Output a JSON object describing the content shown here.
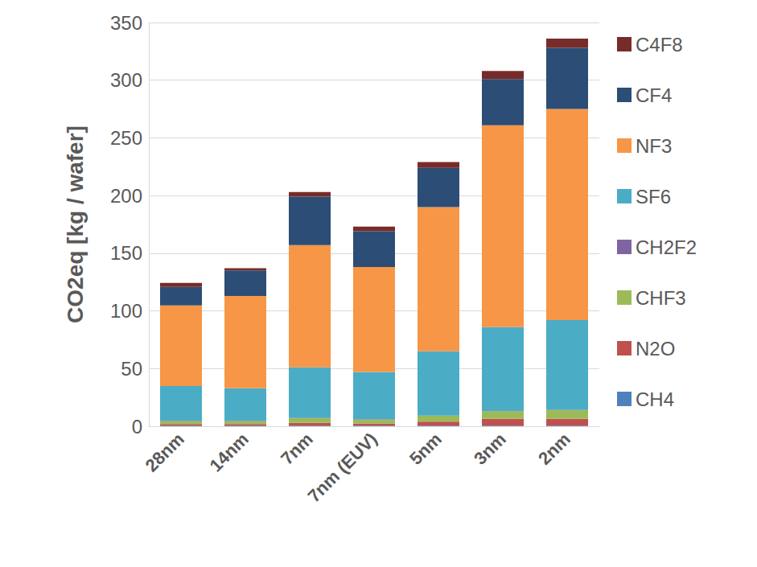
{
  "chart_data": {
    "type": "bar",
    "y_label": "CO2eq [kg / wafer]",
    "categories": [
      "28nm",
      "14nm",
      "7nm",
      "7nm (EUV)",
      "5nm",
      "3nm",
      "2nm"
    ],
    "stacked": true,
    "grid": true,
    "legend": "right",
    "ylim": [
      0,
      350
    ],
    "yticks": [
      0,
      50,
      100,
      150,
      200,
      250,
      300,
      350
    ],
    "series": [
      {
        "name": "CH4",
        "color": "#4f81bd",
        "values": [
          0.5,
          0.5,
          0.5,
          0.5,
          0.5,
          0.5,
          0.5
        ]
      },
      {
        "name": "N2O",
        "color": "#c0504d",
        "values": [
          1.5,
          1.5,
          2.5,
          2,
          3.5,
          6,
          6
        ]
      },
      {
        "name": "CHF3",
        "color": "#9bbb59",
        "values": [
          2.5,
          2.5,
          4,
          3.5,
          5,
          6.5,
          7.5
        ]
      },
      {
        "name": "CH2F2",
        "color": "#8064a2",
        "values": [
          0.3,
          0.3,
          0.3,
          0.3,
          0.3,
          0.3,
          0.3
        ]
      },
      {
        "name": "SF6",
        "color": "#4bacc6",
        "values": [
          30,
          28.2,
          43.7,
          40.7,
          55.7,
          72.7,
          77.7
        ]
      },
      {
        "name": "NF3",
        "color": "#f79646",
        "values": [
          70,
          80,
          106,
          91,
          125,
          175,
          183
        ]
      },
      {
        "name": "CF4",
        "color": "#2c4d75",
        "values": [
          16,
          22,
          42,
          31,
          34,
          40,
          53
        ]
      },
      {
        "name": "C4F8",
        "color": "#772c2a",
        "values": [
          3.5,
          2,
          4,
          4,
          5,
          7,
          8
        ]
      }
    ]
  }
}
